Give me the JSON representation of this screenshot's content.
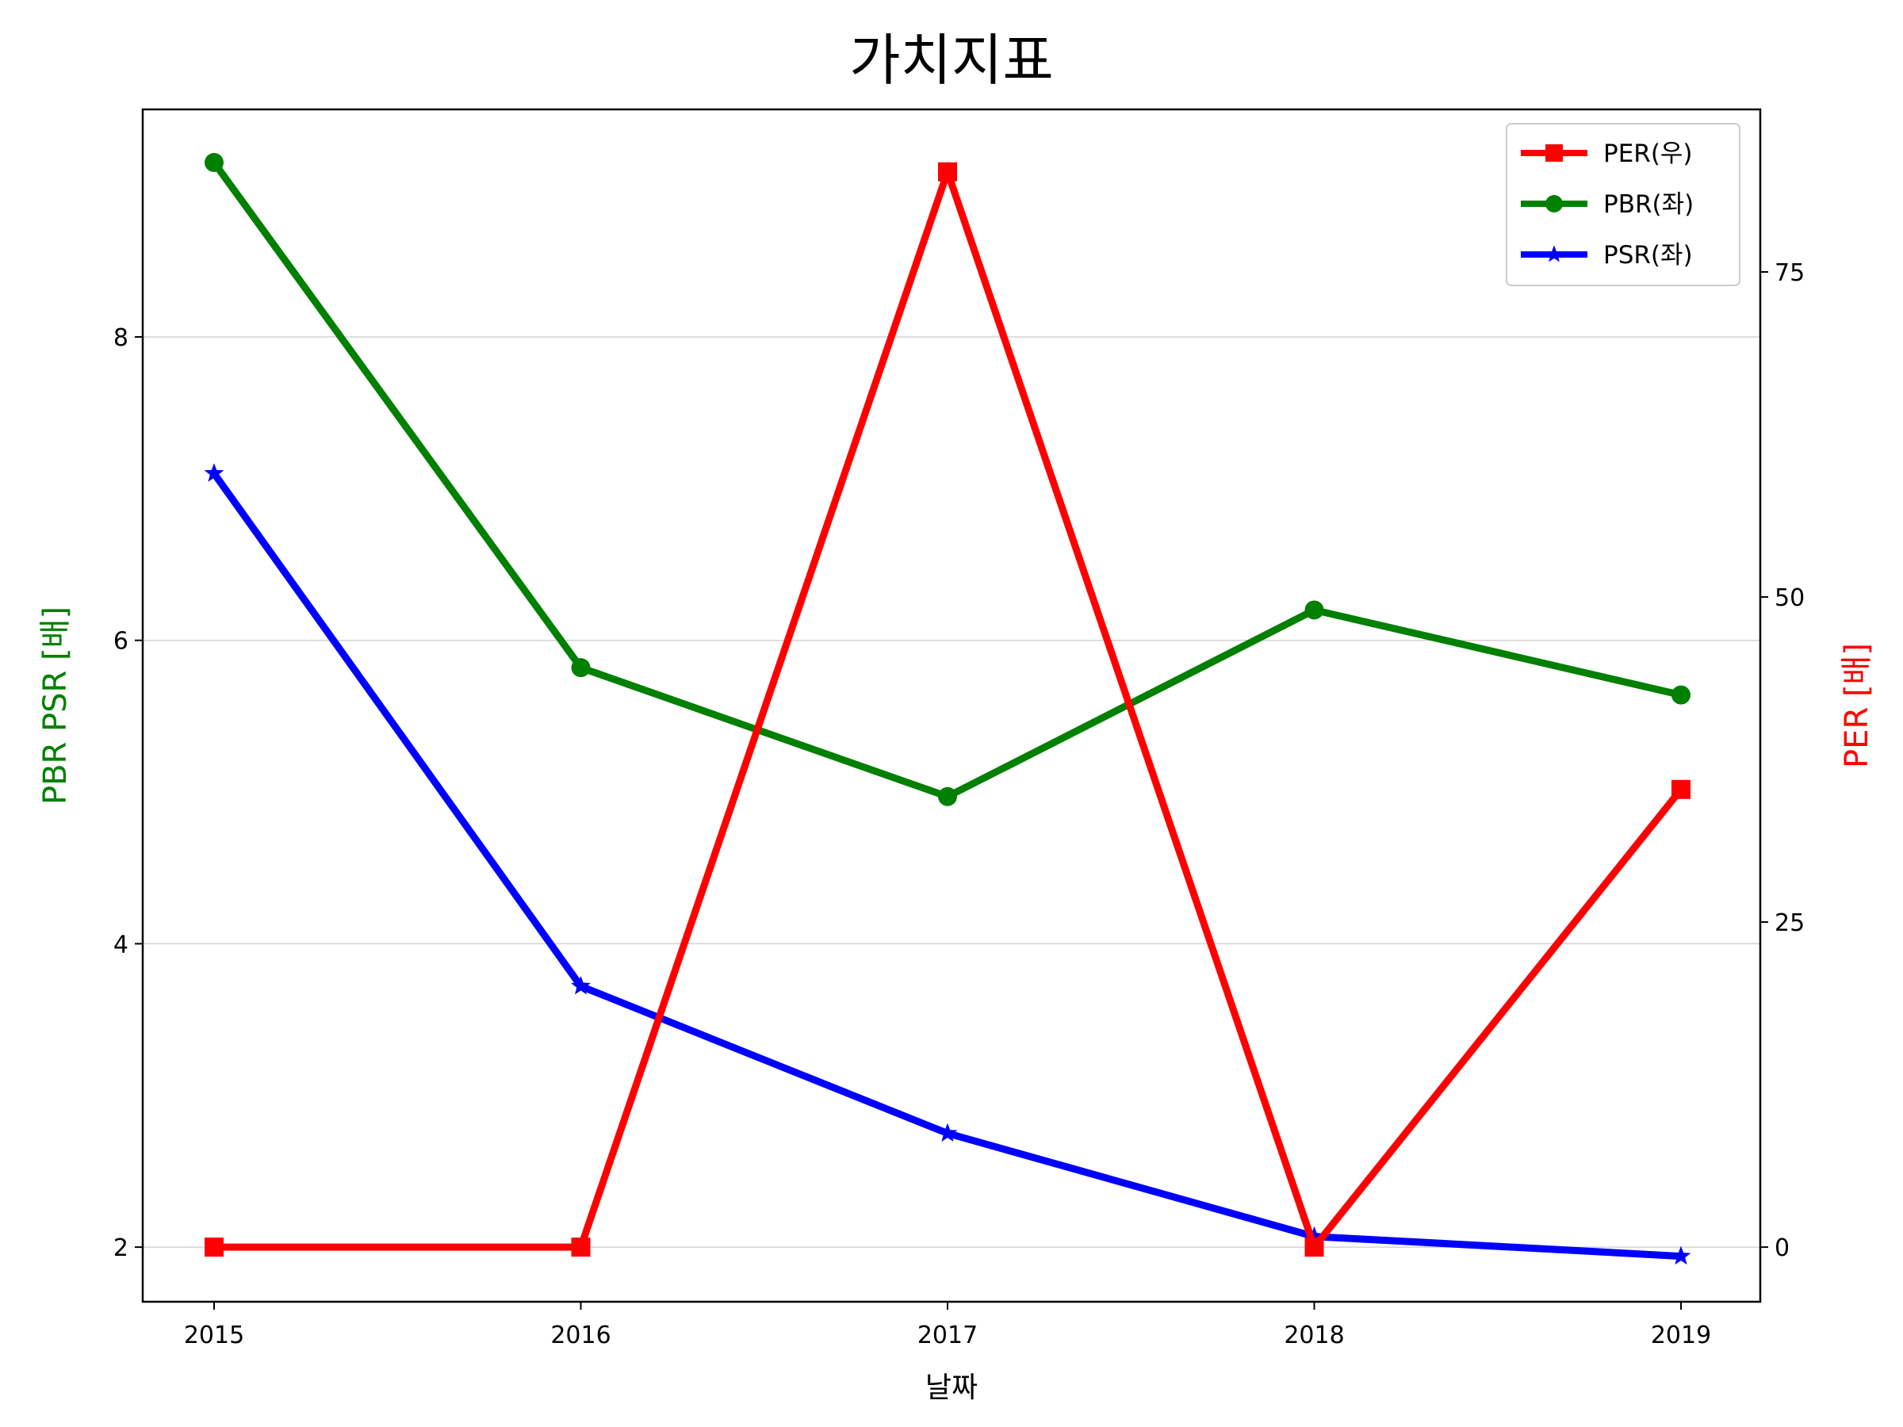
{
  "chart_data": {
    "type": "line",
    "title": "가치지표",
    "xlabel": "날짜",
    "ylabel_left": "PBR PSR [배]",
    "ylabel_right": "PER [배]",
    "categories": [
      "2015",
      "2016",
      "2017",
      "2018",
      "2019"
    ],
    "ylim_left": [
      1.64,
      9.5
    ],
    "yticks_left": [
      2,
      4,
      6,
      8
    ],
    "ylim_right": [
      -4.2,
      87.5
    ],
    "yticks_right": [
      0,
      25,
      50,
      75
    ],
    "grid": "horizontal, left axis",
    "legend_position": "top-right",
    "series": [
      {
        "name": "PER(우)",
        "axis": "right",
        "color": "#ff0000",
        "marker": "square",
        "values": [
          0,
          0,
          82.7,
          0,
          35.2
        ]
      },
      {
        "name": "PBR(좌)",
        "axis": "left",
        "color": "#008000",
        "marker": "circle",
        "values": [
          9.15,
          5.82,
          4.97,
          6.2,
          5.64
        ]
      },
      {
        "name": "PSR(좌)",
        "axis": "left",
        "color": "#0000ff",
        "marker": "star",
        "values": [
          7.1,
          3.72,
          2.75,
          2.07,
          1.94
        ]
      }
    ]
  }
}
